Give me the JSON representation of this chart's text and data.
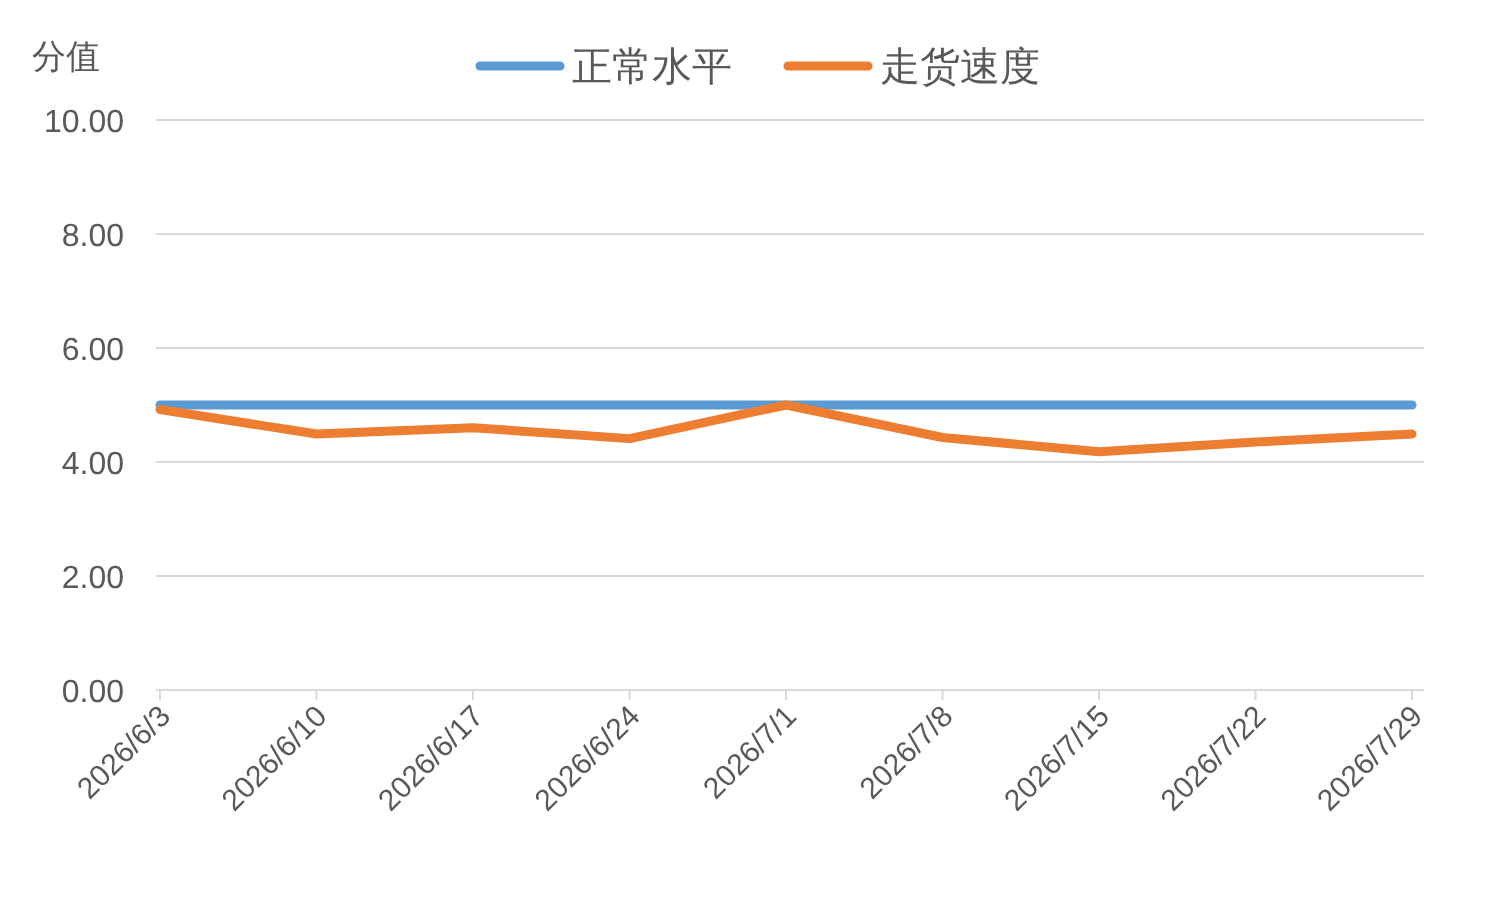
{
  "chart_data": {
    "type": "line",
    "ylabel": "分值",
    "categories": [
      "2026/6/3",
      "2026/6/10",
      "2026/6/17",
      "2026/6/24",
      "2026/7/1",
      "2026/7/8",
      "2026/7/15",
      "2026/7/22",
      "2026/7/29"
    ],
    "series": [
      {
        "name": "正常水平",
        "color": "#5b9bd5",
        "values": [
          5.0,
          5.0,
          5.0,
          5.0,
          5.0,
          5.0,
          5.0,
          5.0,
          5.0
        ]
      },
      {
        "name": "走货速度",
        "color": "#ed7d31",
        "values": [
          4.92,
          4.49,
          4.6,
          4.41,
          5.0,
          4.43,
          4.18,
          4.35,
          4.49
        ]
      }
    ],
    "ylim": [
      0,
      10
    ],
    "yticks": [
      {
        "value": 0,
        "label": "0.00"
      },
      {
        "value": 2,
        "label": "2.00"
      },
      {
        "value": 4,
        "label": "4.00"
      },
      {
        "value": 6,
        "label": "6.00"
      },
      {
        "value": 8,
        "label": "8.00"
      },
      {
        "value": 10,
        "label": "10.00"
      }
    ],
    "grid": "y",
    "legend": "top",
    "marker": "none",
    "line_style": "solid"
  }
}
